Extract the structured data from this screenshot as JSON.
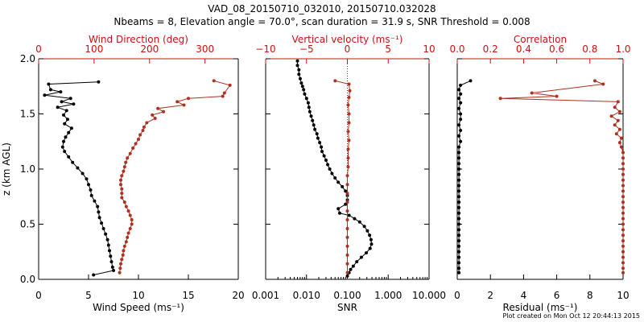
{
  "header": {
    "title": "VAD_08_20150710_032010, 20150710.032028",
    "subtitle": "Nbeams = 8, Elevation angle = 70.0°, scan duration = 31.9 s, SNR Threshold = 0.008"
  },
  "footer": {
    "created": "Plot created on Mon Oct 12 20:44:13 2015"
  },
  "colors": {
    "black": "#000000",
    "red": "#b03020",
    "axis_red": "#cc1111",
    "zero_line": "#cc1111"
  },
  "chart_data": [
    {
      "type": "line",
      "title": "Wind Speed / Wind Direction",
      "xlabel": "Wind Speed (ms⁻¹)",
      "x2label": "Wind Direction (deg)",
      "ylabel": "z (km AGL)",
      "xlim": [
        0,
        20
      ],
      "x2lim": [
        0,
        360
      ],
      "ylim": [
        0,
        2.0
      ],
      "xticks": [
        "0",
        "5",
        "10",
        "15",
        "20"
      ],
      "x2ticks": [
        "0",
        "100",
        "200",
        "300"
      ],
      "yticks": [
        "0.0",
        "0.5",
        "1.0",
        "1.5",
        "2.0"
      ],
      "series": [
        {
          "name": "Wind Speed",
          "color": "#000000",
          "axis": "bottom",
          "points": [
            [
              6.0,
              1.79
            ],
            [
              1.0,
              1.77
            ],
            [
              1.2,
              1.72
            ],
            [
              2.2,
              1.7
            ],
            [
              0.6,
              1.67
            ],
            [
              3.2,
              1.64
            ],
            [
              2.3,
              1.61
            ],
            [
              3.5,
              1.59
            ],
            [
              1.9,
              1.56
            ],
            [
              2.8,
              1.53
            ],
            [
              2.5,
              1.49
            ],
            [
              2.9,
              1.45
            ],
            [
              2.6,
              1.41
            ],
            [
              3.3,
              1.37
            ],
            [
              3.0,
              1.33
            ],
            [
              2.7,
              1.29
            ],
            [
              2.5,
              1.25
            ],
            [
              2.4,
              1.2
            ],
            [
              2.6,
              1.16
            ],
            [
              3.0,
              1.11
            ],
            [
              3.4,
              1.06
            ],
            [
              3.9,
              1.01
            ],
            [
              4.4,
              0.96
            ],
            [
              4.8,
              0.91
            ],
            [
              5.0,
              0.86
            ],
            [
              5.2,
              0.81
            ],
            [
              5.3,
              0.76
            ],
            [
              5.6,
              0.71
            ],
            [
              5.9,
              0.66
            ],
            [
              6.0,
              0.61
            ],
            [
              6.1,
              0.56
            ],
            [
              6.3,
              0.51
            ],
            [
              6.5,
              0.46
            ],
            [
              6.7,
              0.41
            ],
            [
              6.9,
              0.36
            ],
            [
              7.0,
              0.31
            ],
            [
              7.1,
              0.26
            ],
            [
              7.2,
              0.21
            ],
            [
              7.3,
              0.16
            ],
            [
              7.4,
              0.11
            ],
            [
              7.5,
              0.08
            ],
            [
              5.5,
              0.04
            ]
          ]
        },
        {
          "name": "Wind Direction",
          "color": "#b03020",
          "axis": "top",
          "points": [
            [
              316,
              1.8
            ],
            [
              345,
              1.76
            ],
            [
              335,
              1.69
            ],
            [
              332,
              1.66
            ],
            [
              270,
              1.64
            ],
            [
              250,
              1.61
            ],
            [
              262,
              1.58
            ],
            [
              215,
              1.55
            ],
            [
              225,
              1.52
            ],
            [
              205,
              1.49
            ],
            [
              210,
              1.46
            ],
            [
              195,
              1.42
            ],
            [
              190,
              1.38
            ],
            [
              188,
              1.35
            ],
            [
              183,
              1.31
            ],
            [
              180,
              1.27
            ],
            [
              175,
              1.23
            ],
            [
              170,
              1.19
            ],
            [
              165,
              1.14
            ],
            [
              160,
              1.1
            ],
            [
              157,
              1.06
            ],
            [
              155,
              1.02
            ],
            [
              153,
              0.98
            ],
            [
              150,
              0.94
            ],
            [
              148,
              0.9
            ],
            [
              148,
              0.86
            ],
            [
              150,
              0.82
            ],
            [
              150,
              0.78
            ],
            [
              150,
              0.74
            ],
            [
              155,
              0.7
            ],
            [
              158,
              0.66
            ],
            [
              162,
              0.62
            ],
            [
              165,
              0.58
            ],
            [
              168,
              0.54
            ],
            [
              168,
              0.5
            ],
            [
              165,
              0.46
            ],
            [
              162,
              0.42
            ],
            [
              160,
              0.38
            ],
            [
              158,
              0.34
            ],
            [
              155,
              0.3
            ],
            [
              153,
              0.26
            ],
            [
              152,
              0.22
            ],
            [
              150,
              0.18
            ],
            [
              148,
              0.14
            ],
            [
              147,
              0.1
            ],
            [
              146,
              0.06
            ]
          ]
        }
      ]
    },
    {
      "type": "line",
      "title": "Vertical velocity / SNR",
      "xlabel": "SNR",
      "x2label": "Vertical velocity (ms⁻¹)",
      "xscale": "log",
      "xlim": [
        0.001,
        10.0
      ],
      "x2lim": [
        -10,
        10
      ],
      "ylim": [
        0,
        2.0
      ],
      "xticks": [
        "0.001",
        "0.010",
        "0.100",
        "1.000",
        "10.000"
      ],
      "x2ticks": [
        "−10",
        "−5",
        "0",
        "5",
        "10"
      ],
      "series": [
        {
          "name": "SNR",
          "color": "#000000",
          "axis": "bottom",
          "points": [
            [
              0.006,
              1.98
            ],
            [
              0.006,
              1.94
            ],
            [
              0.0065,
              1.9
            ],
            [
              0.0065,
              1.86
            ],
            [
              0.007,
              1.82
            ],
            [
              0.0075,
              1.78
            ],
            [
              0.008,
              1.75
            ],
            [
              0.0085,
              1.72
            ],
            [
              0.009,
              1.68
            ],
            [
              0.01,
              1.64
            ],
            [
              0.011,
              1.6
            ],
            [
              0.0115,
              1.56
            ],
            [
              0.012,
              1.52
            ],
            [
              0.013,
              1.48
            ],
            [
              0.014,
              1.44
            ],
            [
              0.015,
              1.4
            ],
            [
              0.016,
              1.36
            ],
            [
              0.018,
              1.32
            ],
            [
              0.019,
              1.28
            ],
            [
              0.021,
              1.24
            ],
            [
              0.023,
              1.2
            ],
            [
              0.024,
              1.16
            ],
            [
              0.027,
              1.12
            ],
            [
              0.03,
              1.08
            ],
            [
              0.033,
              1.04
            ],
            [
              0.037,
              1.0
            ],
            [
              0.042,
              0.96
            ],
            [
              0.05,
              0.92
            ],
            [
              0.06,
              0.88
            ],
            [
              0.075,
              0.84
            ],
            [
              0.09,
              0.8
            ],
            [
              0.1,
              0.76
            ],
            [
              0.1,
              0.72
            ],
            [
              0.09,
              0.68
            ],
            [
              0.06,
              0.64
            ],
            [
              0.065,
              0.6
            ],
            [
              0.11,
              0.58
            ],
            [
              0.15,
              0.55
            ],
            [
              0.2,
              0.52
            ],
            [
              0.26,
              0.48
            ],
            [
              0.31,
              0.44
            ],
            [
              0.35,
              0.4
            ],
            [
              0.38,
              0.36
            ],
            [
              0.39,
              0.32
            ],
            [
              0.36,
              0.28
            ],
            [
              0.29,
              0.24
            ],
            [
              0.22,
              0.2
            ],
            [
              0.17,
              0.16
            ],
            [
              0.14,
              0.12
            ],
            [
              0.12,
              0.09
            ],
            [
              0.11,
              0.06
            ],
            [
              0.1,
              0.03
            ]
          ]
        },
        {
          "name": "Vertical velocity",
          "color": "#b03020",
          "axis": "top",
          "points": [
            [
              -1.5,
              1.8
            ],
            [
              0.2,
              1.77
            ],
            [
              0.3,
              1.71
            ],
            [
              0.2,
              1.65
            ],
            [
              0.1,
              1.58
            ],
            [
              0.2,
              1.5
            ],
            [
              0.2,
              1.42
            ],
            [
              0.1,
              1.34
            ],
            [
              0.2,
              1.26
            ],
            [
              0.1,
              1.18
            ],
            [
              0.1,
              1.1
            ],
            [
              0.1,
              1.02
            ],
            [
              0.0,
              0.94
            ],
            [
              0.0,
              0.86
            ],
            [
              0.0,
              0.78
            ],
            [
              0.0,
              0.7
            ],
            [
              0.0,
              0.62
            ],
            [
              0.0,
              0.54
            ],
            [
              0.0,
              0.46
            ],
            [
              0.0,
              0.38
            ],
            [
              0.0,
              0.3
            ],
            [
              0.0,
              0.22
            ],
            [
              0.0,
              0.14
            ],
            [
              0.0,
              0.06
            ]
          ]
        }
      ]
    },
    {
      "type": "line",
      "title": "Correlation / Residual",
      "xlabel": "Residual (ms⁻¹)",
      "x2label": "Correlation",
      "xlim": [
        0,
        10
      ],
      "x2lim": [
        0,
        1.0
      ],
      "ylim": [
        0,
        2.0
      ],
      "xticks": [
        "0",
        "2",
        "4",
        "6",
        "8",
        "10"
      ],
      "x2ticks": [
        "0.0",
        "0.2",
        "0.4",
        "0.6",
        "0.8",
        "1.0"
      ],
      "series": [
        {
          "name": "Residual",
          "color": "#000000",
          "axis": "bottom",
          "points": [
            [
              0.8,
              1.8
            ],
            [
              0.2,
              1.76
            ],
            [
              0.1,
              1.72
            ],
            [
              0.2,
              1.68
            ],
            [
              0.1,
              1.64
            ],
            [
              0.2,
              1.6
            ],
            [
              0.1,
              1.55
            ],
            [
              0.2,
              1.5
            ],
            [
              0.2,
              1.45
            ],
            [
              0.1,
              1.4
            ],
            [
              0.2,
              1.35
            ],
            [
              0.1,
              1.3
            ],
            [
              0.2,
              1.25
            ],
            [
              0.1,
              1.2
            ],
            [
              0.1,
              1.15
            ],
            [
              0.1,
              1.1
            ],
            [
              0.1,
              1.05
            ],
            [
              0.1,
              1.0
            ],
            [
              0.1,
              0.95
            ],
            [
              0.1,
              0.9
            ],
            [
              0.1,
              0.85
            ],
            [
              0.1,
              0.8
            ],
            [
              0.1,
              0.75
            ],
            [
              0.1,
              0.7
            ],
            [
              0.1,
              0.65
            ],
            [
              0.1,
              0.6
            ],
            [
              0.1,
              0.55
            ],
            [
              0.1,
              0.5
            ],
            [
              0.1,
              0.45
            ],
            [
              0.1,
              0.4
            ],
            [
              0.1,
              0.35
            ],
            [
              0.1,
              0.3
            ],
            [
              0.1,
              0.25
            ],
            [
              0.1,
              0.2
            ],
            [
              0.1,
              0.15
            ],
            [
              0.1,
              0.1
            ],
            [
              0.1,
              0.06
            ]
          ]
        },
        {
          "name": "Correlation",
          "color": "#b03020",
          "axis": "top",
          "points": [
            [
              0.83,
              1.8
            ],
            [
              0.88,
              1.77
            ],
            [
              0.45,
              1.69
            ],
            [
              0.6,
              1.66
            ],
            [
              0.26,
              1.64
            ],
            [
              0.97,
              1.61
            ],
            [
              0.95,
              1.56
            ],
            [
              0.98,
              1.52
            ],
            [
              0.93,
              1.48
            ],
            [
              0.97,
              1.44
            ],
            [
              0.95,
              1.4
            ],
            [
              0.98,
              1.36
            ],
            [
              0.96,
              1.32
            ],
            [
              0.99,
              1.28
            ],
            [
              0.98,
              1.24
            ],
            [
              0.99,
              1.2
            ],
            [
              1.0,
              1.15
            ],
            [
              1.0,
              1.1
            ],
            [
              1.0,
              1.05
            ],
            [
              1.0,
              1.0
            ],
            [
              1.0,
              0.95
            ],
            [
              1.0,
              0.9
            ],
            [
              1.0,
              0.85
            ],
            [
              1.0,
              0.8
            ],
            [
              1.0,
              0.75
            ],
            [
              1.0,
              0.7
            ],
            [
              1.0,
              0.65
            ],
            [
              1.0,
              0.6
            ],
            [
              1.0,
              0.55
            ],
            [
              1.0,
              0.5
            ],
            [
              1.0,
              0.45
            ],
            [
              1.0,
              0.4
            ],
            [
              1.0,
              0.35
            ],
            [
              1.0,
              0.3
            ],
            [
              1.0,
              0.25
            ],
            [
              1.0,
              0.2
            ],
            [
              1.0,
              0.15
            ],
            [
              1.0,
              0.1
            ],
            [
              1.0,
              0.06
            ]
          ]
        }
      ]
    }
  ]
}
